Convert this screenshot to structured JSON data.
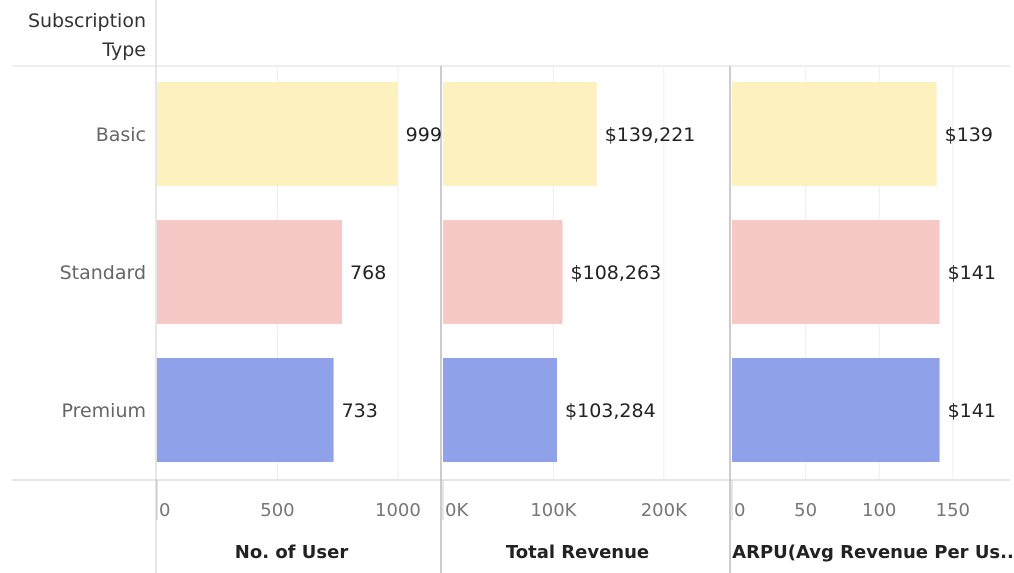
{
  "header": {
    "row_header_line1": "Subscription",
    "row_header_line2": "Type"
  },
  "chart_data": {
    "type": "bar",
    "orientation": "horizontal",
    "categories": [
      "Basic",
      "Standard",
      "Premium"
    ],
    "category_colors": [
      "#fcf1bf",
      "#f6c8c6",
      "#8fa1e8"
    ],
    "panels": [
      {
        "title": "No. of User",
        "values": [
          999,
          768,
          733
        ],
        "value_labels": [
          "999",
          "768",
          "733"
        ],
        "xlim": [
          0,
          1100
        ],
        "ticks": [
          0,
          500,
          1000
        ],
        "tick_labels": [
          "0",
          "500",
          "1000"
        ]
      },
      {
        "title": "Total Revenue",
        "values": [
          139221,
          108263,
          103284
        ],
        "value_labels": [
          "$139,221",
          "$108,263",
          "$103,284"
        ],
        "xlim": [
          0,
          240000
        ],
        "ticks": [
          0,
          100000,
          200000
        ],
        "tick_labels": [
          "0K",
          "100K",
          "200K"
        ]
      },
      {
        "title": "ARPU(Avg Revenue Per Us..",
        "values": [
          139,
          141,
          141
        ],
        "value_labels": [
          "$139",
          "$141",
          "$141"
        ],
        "xlim": [
          0,
          180
        ],
        "ticks": [
          0,
          50,
          100,
          150
        ],
        "tick_labels": [
          "0",
          "50",
          "100",
          "150"
        ]
      }
    ],
    "grid": true,
    "legend": "none"
  }
}
